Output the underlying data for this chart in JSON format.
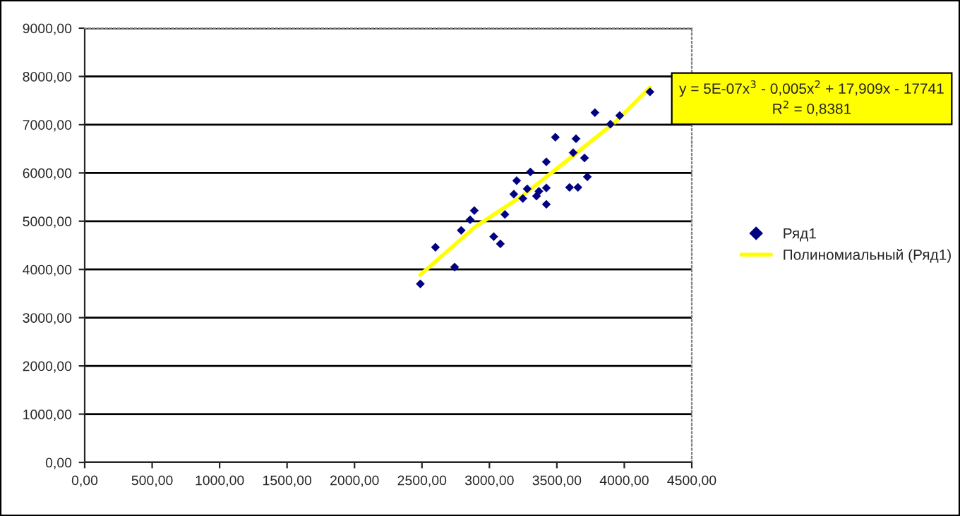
{
  "chart_data": {
    "type": "scatter",
    "annotations": [
      "y = 5E-07x$^{3}$ - 0,005x$^{2}$ + 17,909x - 17741",
      "R$^{2}$ = 0,8381"
    ],
    "series": [
      {
        "name": "Ряд1",
        "color": "#000080",
        "marker": "diamond",
        "x": [
          2488,
          2600,
          2742,
          2791,
          2857,
          2888,
          3032,
          3081,
          3115,
          3181,
          3202,
          3248,
          3280,
          3304,
          3349,
          3367,
          3422,
          3422,
          3422,
          3489,
          3594,
          3621,
          3642,
          3656,
          3705,
          3726,
          3782,
          3897,
          3966,
          4190
        ],
        "values": [
          3700,
          4460,
          4050,
          4810,
          5030,
          5220,
          4680,
          4530,
          5140,
          5560,
          5840,
          5470,
          5670,
          6020,
          5520,
          5620,
          5690,
          5350,
          6230,
          6740,
          5700,
          6420,
          6710,
          5700,
          6310,
          5920,
          7250,
          7010,
          7190,
          7680
        ]
      },
      {
        "name": "Полиномиальный (Ряд1)",
        "type": "line",
        "color": "#ffff00",
        "line_style": "solid",
        "x": [
          2488,
          2893,
          3241,
          3590,
          3939,
          4190
        ],
        "values": [
          3890,
          4880,
          5520,
          6290,
          7070,
          7770
        ]
      }
    ],
    "xlim": [
      0,
      4500
    ],
    "xticks": [
      {
        "value": 0,
        "label": "0,00"
      },
      {
        "value": 500,
        "label": "500,00"
      },
      {
        "value": 1000,
        "label": "1000,00"
      },
      {
        "value": 1500,
        "label": "1500,00"
      },
      {
        "value": 2000,
        "label": "2000,00"
      },
      {
        "value": 2500,
        "label": "2500,00"
      },
      {
        "value": 3000,
        "label": "3000,00"
      },
      {
        "value": 3500,
        "label": "3500,00"
      },
      {
        "value": 4000,
        "label": "4000,00"
      },
      {
        "value": 4500,
        "label": "4500,00"
      }
    ],
    "ylim": [
      0,
      9000
    ],
    "yticks": [
      {
        "value": 0,
        "label": "0,00"
      },
      {
        "value": 1000,
        "label": "1000,00"
      },
      {
        "value": 2000,
        "label": "2000,00"
      },
      {
        "value": 3000,
        "label": "3000,00"
      },
      {
        "value": 4000,
        "label": "4000,00"
      },
      {
        "value": 5000,
        "label": "5000,00"
      },
      {
        "value": 6000,
        "label": "6000,00"
      },
      {
        "value": 7000,
        "label": "7000,00"
      },
      {
        "value": 8000,
        "label": "8000,00"
      },
      {
        "value": 9000,
        "label": "9000,00"
      }
    ],
    "grid": "y",
    "legend": "right"
  }
}
